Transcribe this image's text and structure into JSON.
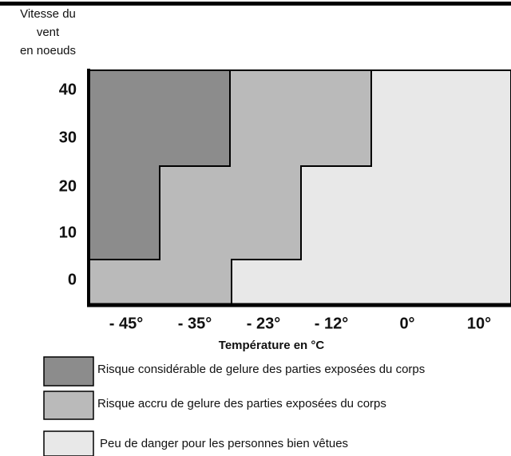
{
  "y_axis": {
    "title_lines": [
      "Vitesse du",
      "vent",
      "en noeuds"
    ],
    "labels": [
      40,
      30,
      20,
      10,
      0
    ]
  },
  "x_axis": {
    "title": "Température en °C",
    "labels": [
      "- 45°",
      "- 35°",
      "- 23°",
      "- 12°",
      "0°",
      "10°"
    ]
  },
  "legend": [
    {
      "label": "Risque considérable de gelure des parties exposées du corps",
      "color": "#8c8c8c"
    },
    {
      "label": "Risque accru de gelure des parties exposées du corps",
      "color": "#bababa"
    },
    {
      "label": "Peu de danger pour les personnes bien vêtues",
      "color": "#e8e8e8"
    }
  ]
}
